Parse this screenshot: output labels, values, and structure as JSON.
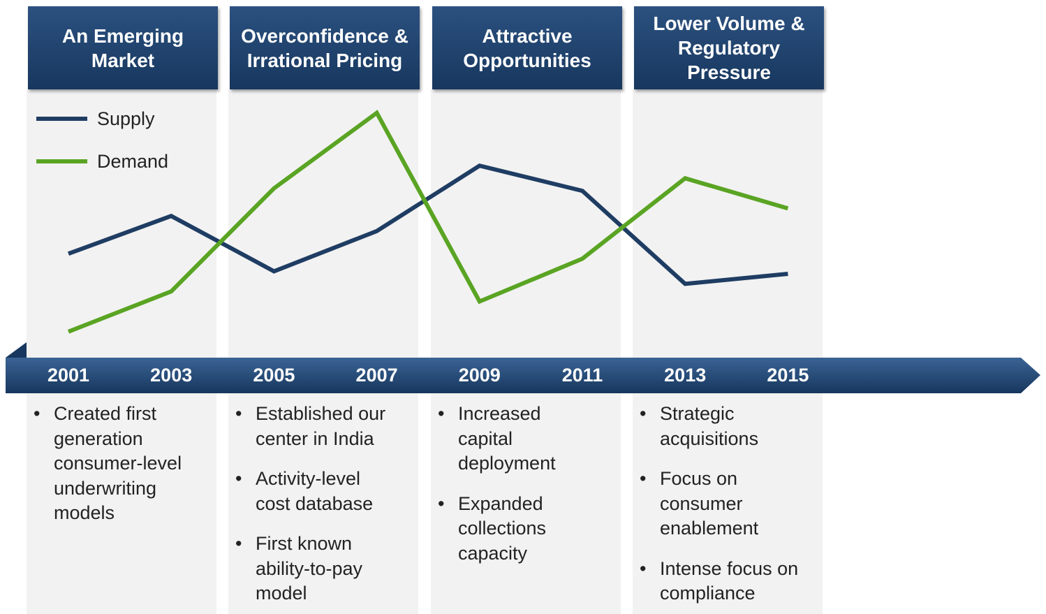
{
  "chart_data": {
    "type": "line",
    "categories": [
      "2001",
      "2003",
      "2005",
      "2007",
      "2009",
      "2011",
      "2013",
      "2015"
    ],
    "ylim": [
      0,
      100
    ],
    "series": [
      {
        "name": "Supply",
        "color": "#1f3d63",
        "values": [
          38,
          53,
          31,
          47,
          73,
          63,
          26,
          30
        ]
      },
      {
        "name": "Demand",
        "color": "#5aa423",
        "values": [
          7,
          23,
          64,
          94,
          19,
          36,
          68,
          56
        ]
      }
    ]
  },
  "phases": [
    {
      "title": "An Emerging Market",
      "bullets": [
        "Created first generation consumer-level underwriting models"
      ]
    },
    {
      "title": "Overconfidence & Irrational Pricing",
      "bullets": [
        "Established our center in India",
        "Activity-level cost database",
        "First known ability-to-pay model"
      ]
    },
    {
      "title": "Attractive Opportunities",
      "bullets": [
        "Increased capital deployment",
        "Expanded collections capacity"
      ]
    },
    {
      "title": "Lower Volume & Regulatory Pressure",
      "bullets": [
        "Strategic acquisitions",
        "Focus on consumer enablement",
        "Intense focus on compliance"
      ]
    }
  ]
}
